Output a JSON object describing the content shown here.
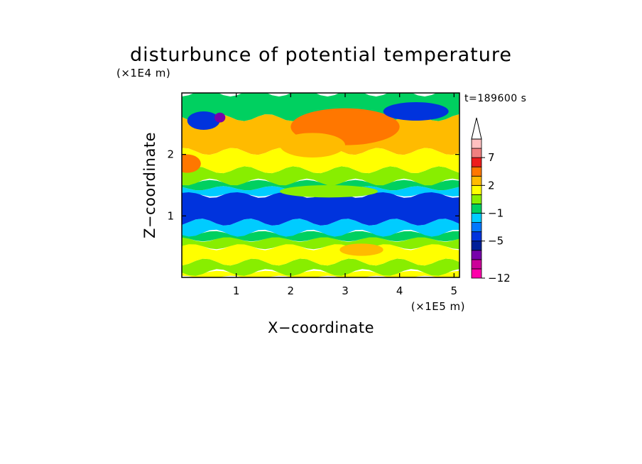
{
  "chart_data": {
    "type": "heatmap",
    "title": "disturbunce of potential temperature",
    "time_label": "t=189600 s",
    "xlabel": "X−coordinate",
    "ylabel": "Z−coordinate",
    "x_unit": "(×1E5 m)",
    "y_unit": "(×1E4 m)",
    "xlim": [
      0,
      5.1
    ],
    "ylim": [
      0,
      3.0
    ],
    "x_ticks": [
      "1",
      "2",
      "3",
      "4",
      "5"
    ],
    "x_tick_values": [
      1,
      2,
      3,
      4,
      5
    ],
    "y_ticks": [
      "1",
      "2"
    ],
    "y_tick_values": [
      1,
      2
    ],
    "grid": false,
    "colorbar": {
      "labels": [
        "7",
        "2",
        "−1",
        "−5",
        "−12"
      ],
      "label_levels": [
        7,
        2,
        -1,
        -5,
        -12
      ],
      "extend": "max",
      "levels": [
        {
          "lo": -12,
          "hi": -10,
          "color": "#ff00aa"
        },
        {
          "lo": -10,
          "hi": -8,
          "color": "#cc0099"
        },
        {
          "lo": -8,
          "hi": -6,
          "color": "#7700aa"
        },
        {
          "lo": -6,
          "hi": -5,
          "color": "#001f99"
        },
        {
          "lo": -5,
          "hi": -3,
          "color": "#0033dd"
        },
        {
          "lo": -3,
          "hi": -2,
          "color": "#0077ff"
        },
        {
          "lo": -2,
          "hi": -1,
          "color": "#00ccff"
        },
        {
          "lo": -1,
          "hi": 0,
          "color": "#00d060"
        },
        {
          "lo": 0,
          "hi": 1,
          "color": "#88ee00"
        },
        {
          "lo": 1,
          "hi": 2,
          "color": "#ffff00"
        },
        {
          "lo": 2,
          "hi": 3,
          "color": "#ffbb00"
        },
        {
          "lo": 3,
          "hi": 5,
          "color": "#ff7700"
        },
        {
          "lo": 5,
          "hi": 7,
          "color": "#ee1c1c"
        },
        {
          "lo": 7,
          "hi": 9,
          "color": "#f08080"
        },
        {
          "lo": 9,
          "hi": 11,
          "color": "#ffc0c0"
        },
        {
          "lo": 11,
          "hi": null,
          "color": "#ffffff"
        }
      ]
    },
    "layers": [
      {
        "z_from": 0.0,
        "z_to": 0.08,
        "value": 1.5
      },
      {
        "z_from": 0.08,
        "z_to": 0.25,
        "value": 0.5
      },
      {
        "z_from": 0.25,
        "z_to": 0.5,
        "value": 1.5
      },
      {
        "z_from": 0.5,
        "z_to": 0.62,
        "value": 0.5
      },
      {
        "z_from": 0.62,
        "z_to": 0.72,
        "value": -0.5
      },
      {
        "z_from": 0.72,
        "z_to": 0.9,
        "value": -1.5
      },
      {
        "z_from": 0.9,
        "z_to": 1.35,
        "value": -4
      },
      {
        "z_from": 1.35,
        "z_to": 1.45,
        "value": -1.5
      },
      {
        "z_from": 1.45,
        "z_to": 1.55,
        "value": -0.5
      },
      {
        "z_from": 1.55,
        "z_to": 1.75,
        "value": 0.5
      },
      {
        "z_from": 1.75,
        "z_to": 2.05,
        "value": 1.5
      },
      {
        "z_from": 2.05,
        "z_to": 2.6,
        "value": 2.5
      },
      {
        "z_from": 2.6,
        "z_to": 3.0,
        "value": -0.5
      }
    ],
    "patches": [
      {
        "x": 3.0,
        "z": 2.45,
        "rx": 1.0,
        "rz": 0.3,
        "value": 4
      },
      {
        "x": 2.4,
        "z": 2.15,
        "rx": 0.6,
        "rz": 0.2,
        "value": 2.5
      },
      {
        "x": 0.1,
        "z": 1.85,
        "rx": 0.25,
        "rz": 0.15,
        "value": 4
      },
      {
        "x": 0.4,
        "z": 2.55,
        "rx": 0.3,
        "rz": 0.15,
        "value": -4
      },
      {
        "x": 0.7,
        "z": 2.6,
        "rx": 0.1,
        "rz": 0.08,
        "value": -7
      },
      {
        "x": 4.3,
        "z": 2.7,
        "rx": 0.6,
        "rz": 0.15,
        "value": -4
      },
      {
        "x": 2.7,
        "z": 1.4,
        "rx": 0.9,
        "rz": 0.1,
        "value": 0.5
      },
      {
        "x": 3.3,
        "z": 0.45,
        "rx": 0.4,
        "rz": 0.1,
        "value": 2.5
      }
    ]
  }
}
